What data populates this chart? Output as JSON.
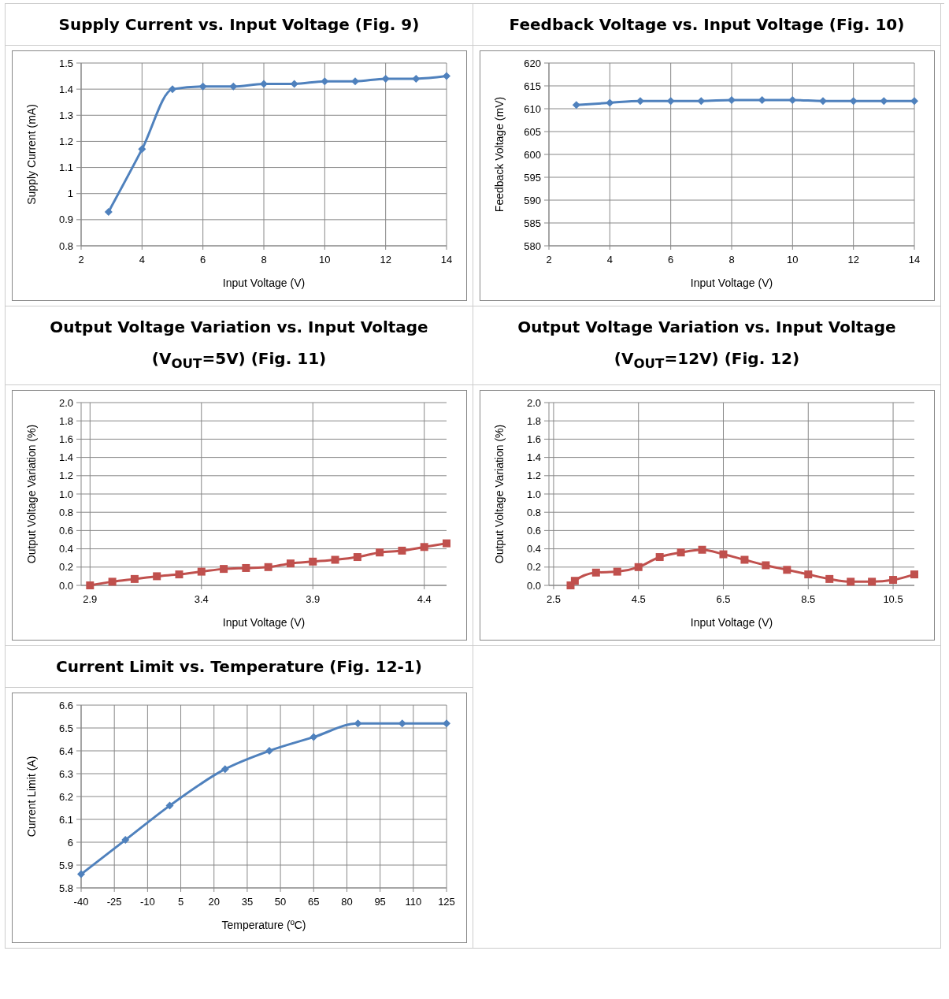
{
  "chart_data": [
    {
      "type": "line",
      "title": "Supply Current vs. Input Voltage (Fig. 9)",
      "xlabel": "Input Voltage (V)",
      "ylabel": "Supply Current (mA)",
      "x": [
        2.9,
        4,
        5,
        6,
        7,
        8,
        9,
        10,
        11,
        12,
        13,
        14
      ],
      "series": [
        {
          "color": "#4f81bd",
          "values": [
            0.93,
            1.17,
            1.4,
            1.41,
            1.41,
            1.42,
            1.42,
            1.43,
            1.43,
            1.44,
            1.44,
            1.45
          ]
        }
      ],
      "xlim": [
        2,
        14
      ],
      "xticks": [
        2,
        4,
        6,
        8,
        10,
        12,
        14
      ],
      "ylim": [
        0.8,
        1.5
      ],
      "yticks": [
        0.8,
        0.9,
        1,
        1.1,
        1.2,
        1.3,
        1.4,
        1.5
      ],
      "grid": true,
      "marker": "diamond",
      "line_style": "solid"
    },
    {
      "type": "line",
      "title": "Feedback Voltage vs. Input Voltage (Fig. 10)",
      "xlabel": "Input Voltage (V)",
      "ylabel": "Feedback Voltage (mV)",
      "x": [
        2.9,
        4,
        5,
        6,
        7,
        8,
        9,
        10,
        11,
        12,
        13,
        14
      ],
      "series": [
        {
          "color": "#4f81bd",
          "values": [
            610.8,
            611.3,
            611.7,
            611.7,
            611.7,
            611.9,
            611.9,
            611.9,
            611.7,
            611.7,
            611.7,
            611.7
          ]
        }
      ],
      "xlim": [
        2,
        14
      ],
      "xticks": [
        2,
        4,
        6,
        8,
        10,
        12,
        14
      ],
      "ylim": [
        580,
        620
      ],
      "yticks": [
        580,
        585,
        590,
        595,
        600,
        605,
        610,
        615,
        620
      ],
      "grid": true,
      "marker": "diamond",
      "line_style": "solid"
    },
    {
      "type": "line",
      "title": "Output Voltage Variation vs. Input Voltage (V$_{OUT}$=5V) (Fig. 11)",
      "xlabel": "Input Voltage (V)",
      "ylabel": "Output Voltage Variation (%)",
      "x": [
        2.9,
        3.0,
        3.1,
        3.2,
        3.3,
        3.4,
        3.5,
        3.6,
        3.7,
        3.8,
        3.9,
        4.0,
        4.1,
        4.2,
        4.3,
        4.4,
        4.5
      ],
      "series": [
        {
          "color": "#c0504d",
          "values": [
            0,
            0.04,
            0.07,
            0.1,
            0.12,
            0.15,
            0.18,
            0.19,
            0.2,
            0.24,
            0.26,
            0.28,
            0.31,
            0.36,
            0.38,
            0.42,
            0.46
          ]
        }
      ],
      "xlim": [
        2.86,
        4.5
      ],
      "xticks": [
        2.9,
        3.4,
        3.9,
        4.4
      ],
      "ylim": [
        0,
        2
      ],
      "yticks": [
        {
          "value": 0,
          "label": "0.0"
        },
        0.2,
        0.4,
        0.6,
        0.8,
        {
          "value": 1,
          "label": "1.0"
        },
        1.2,
        1.4,
        1.6,
        1.8,
        {
          "value": 2,
          "label": "2.0"
        }
      ],
      "grid": true,
      "marker": "square",
      "line_style": "solid"
    },
    {
      "type": "line",
      "title": "Output Voltage Variation vs. Input Voltage (V$_{OUT}$=12V) (Fig. 12)",
      "xlabel": "Input Voltage (V)",
      "ylabel": "Output Voltage Variation (%)",
      "x": [
        2.9,
        3,
        3.5,
        4,
        4.5,
        5,
        5.5,
        6,
        6.5,
        7,
        7.5,
        8,
        8.5,
        9,
        9.5,
        10,
        10.5,
        11
      ],
      "series": [
        {
          "color": "#c0504d",
          "values": [
            0,
            0.05,
            0.14,
            0.15,
            0.2,
            0.31,
            0.36,
            0.39,
            0.34,
            0.28,
            0.22,
            0.17,
            0.12,
            0.07,
            0.04,
            0.04,
            0.06,
            0.12
          ]
        }
      ],
      "xlim": [
        2.39,
        11
      ],
      "xticks": [
        2.5,
        4.5,
        6.5,
        8.5,
        10.5
      ],
      "ylim": [
        0,
        2
      ],
      "yticks": [
        {
          "value": 0,
          "label": "0.0"
        },
        0.2,
        0.4,
        0.6,
        0.8,
        {
          "value": 1,
          "label": "1.0"
        },
        1.2,
        1.4,
        1.6,
        1.8,
        {
          "value": 2,
          "label": "2.0"
        }
      ],
      "grid": true,
      "marker": "square",
      "line_style": "solid"
    },
    {
      "type": "line",
      "title": "Current Limit vs. Temperature (Fig. 12-1)",
      "xlabel": "Temperature (ºC)",
      "ylabel": "Current Limit (A)",
      "x": [
        -40,
        -20,
        0,
        25,
        45,
        65,
        85,
        105,
        125
      ],
      "series": [
        {
          "color": "#4f81bd",
          "values": [
            5.86,
            6.01,
            6.16,
            6.32,
            6.4,
            6.46,
            6.52,
            6.52,
            6.52
          ]
        }
      ],
      "xlim": [
        -40,
        125
      ],
      "xticks": [
        -40,
        -25,
        -10,
        5,
        20,
        35,
        50,
        65,
        80,
        95,
        110,
        125
      ],
      "ylim": [
        5.8,
        6.6
      ],
      "yticks": [
        5.8,
        5.9,
        6,
        6.1,
        6.2,
        6.3,
        6.4,
        6.5,
        6.6
      ],
      "grid": true,
      "marker": "diamond",
      "line_style": "solid"
    }
  ]
}
